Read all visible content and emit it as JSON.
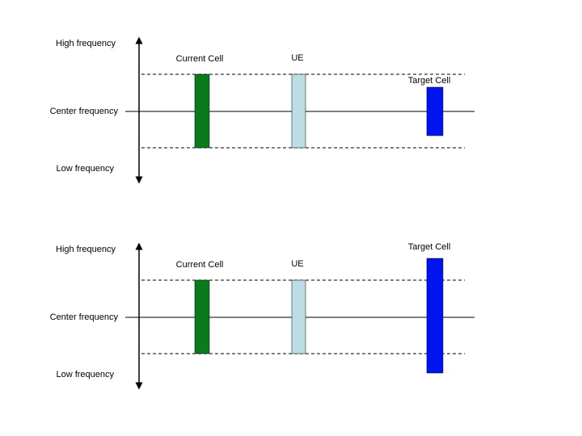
{
  "colors": {
    "current_cell": "#0a7a1a",
    "ue": "#bcdde3",
    "target_cell": "#0014f0",
    "line": "#000000"
  },
  "diagrams": [
    {
      "axis_high_label": "High frequency",
      "axis_center_label": "Center frequency",
      "axis_low_label": "Low frequency",
      "current_cell_label": "Current Cell",
      "ue_label": "UE",
      "target_cell_label": "Target Cell"
    },
    {
      "axis_high_label": "High frequency",
      "axis_center_label": "Center frequency",
      "axis_low_label": "Low frequency",
      "current_cell_label": "Current Cell",
      "ue_label": "UE",
      "target_cell_label": "Target Cell"
    }
  ]
}
